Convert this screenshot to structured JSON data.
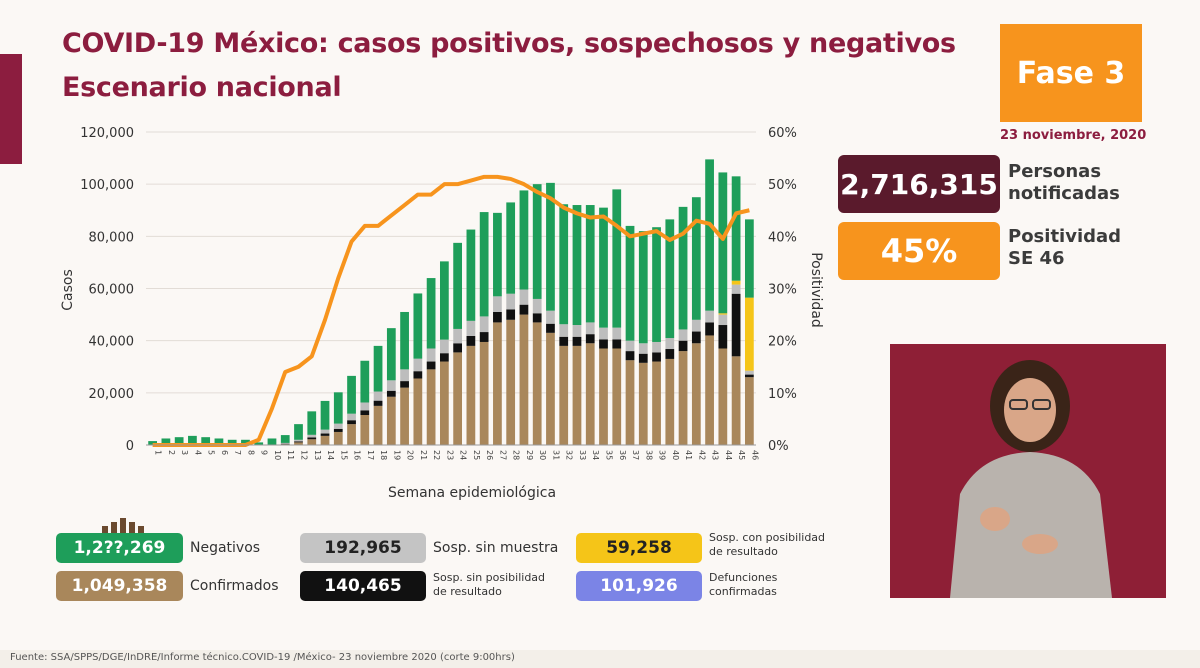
{
  "header": {
    "title": "COVID-19 México: casos positivos, sospechosos y negativos",
    "subtitle": "Escenario nacional",
    "phase": "Fase 3",
    "date": "23 noviembre, 2020"
  },
  "kpis": {
    "notified_value": "2,716,315",
    "notified_label_1": "Personas",
    "notified_label_2": "notificadas",
    "positivity_value": "45%",
    "positivity_label_1": "Positividad",
    "positivity_label_2": "SE 46"
  },
  "legend": {
    "negativos_value": "1,2??,269",
    "negativos_label": "Negativos",
    "confirmados_value": "1,049,358",
    "confirmados_label": "Confirmados",
    "sin_muestra_value": "192,965",
    "sin_muestra_label": "Sosp. sin muestra",
    "sin_posibilidad_value": "140,465",
    "sin_posibilidad_label_1": "Sosp. sin posibilidad",
    "sin_posibilidad_label_2": "de resultado",
    "con_posibilidad_value": "59,258",
    "con_posibilidad_label_1": "Sosp. con posibilidad",
    "con_posibilidad_label_2": "de resultado",
    "defunciones_value": "101,926",
    "defunciones_label_1": "Defunciones",
    "defunciones_label_2": "confirmadas"
  },
  "footer": {
    "source": "Fuente: SSA/SPPS/DGE/InDRE/Informe técnico.COVID-19 /México- 23 noviembre 2020 (corte 9:00hrs)"
  },
  "colors": {
    "confirmados": "#a9875b",
    "sin_posibilidad": "#111111",
    "sin_muestra": "#bdbdbd",
    "negativos": "#1e9e5a",
    "con_posibilidad": "#f5c518",
    "positividad": "#f7941d",
    "brand": "#8c1d3f"
  },
  "chart_data": {
    "type": "bar",
    "stacked": true,
    "xlabel": "Semana epidemiológica",
    "ylabel": "Casos",
    "y2label": "Positividad",
    "ylim": [
      0,
      120000
    ],
    "y2lim": [
      0,
      60
    ],
    "yticks": [
      "0",
      "20,000",
      "40,000",
      "60,000",
      "80,000",
      "100,000",
      "120,000"
    ],
    "y2ticks": [
      "0%",
      "10%",
      "20%",
      "30%",
      "40%",
      "50%",
      "60%"
    ],
    "grid": true,
    "categories": [
      "1",
      "2",
      "3",
      "4",
      "5",
      "6",
      "7",
      "8",
      "9",
      "10",
      "11",
      "12",
      "13",
      "14",
      "15",
      "16",
      "17",
      "18",
      "19",
      "20",
      "21",
      "22",
      "23",
      "24",
      "25",
      "26",
      "27",
      "28",
      "29",
      "30",
      "31",
      "32",
      "33",
      "34",
      "35",
      "36",
      "37",
      "38",
      "39",
      "40",
      "41",
      "42",
      "43",
      "44",
      "45",
      "46"
    ],
    "series": [
      {
        "name": "Confirmados",
        "values": [
          0,
          0,
          0,
          0,
          0,
          0,
          0,
          0,
          0,
          0,
          300,
          1000,
          2200,
          3500,
          5000,
          8000,
          11500,
          15000,
          18500,
          22000,
          25500,
          29000,
          32000,
          35500,
          38000,
          39500,
          47000,
          48000,
          50000,
          47000,
          43000,
          38000,
          38000,
          39000,
          37000,
          37000,
          32500,
          31500,
          32000,
          33000,
          36000,
          39000,
          42000,
          37000,
          34000,
          26000
        ]
      },
      {
        "name": "Sosp. sin posibilidad de resultado",
        "values": [
          0,
          0,
          0,
          0,
          0,
          0,
          0,
          0,
          0,
          0,
          200,
          400,
          700,
          900,
          1200,
          1500,
          1800,
          2000,
          2300,
          2500,
          2800,
          3000,
          3200,
          3500,
          3800,
          3800,
          4000,
          4000,
          3800,
          3500,
          3500,
          3500,
          3500,
          3500,
          3500,
          3500,
          3500,
          3500,
          3500,
          3800,
          4000,
          4500,
          5000,
          9000,
          24000,
          1000
        ]
      },
      {
        "name": "Sosp. sin muestra",
        "values": [
          0,
          0,
          0,
          0,
          0,
          0,
          0,
          0,
          0,
          0,
          300,
          600,
          1000,
          1500,
          2000,
          2500,
          3000,
          3500,
          4000,
          4500,
          4800,
          5000,
          5200,
          5500,
          5800,
          6000,
          6000,
          6000,
          5800,
          5500,
          5000,
          4800,
          4500,
          4500,
          4500,
          4500,
          4000,
          4000,
          4000,
          4200,
          4300,
          4500,
          4500,
          4000,
          3500,
          1500
        ]
      },
      {
        "name": "Sosp. con posibilidad de resultado",
        "values": [
          0,
          0,
          0,
          0,
          0,
          0,
          0,
          0,
          0,
          0,
          0,
          0,
          0,
          0,
          0,
          0,
          0,
          0,
          0,
          0,
          0,
          0,
          0,
          0,
          0,
          0,
          0,
          0,
          0,
          0,
          0,
          0,
          0,
          0,
          0,
          0,
          0,
          0,
          0,
          0,
          0,
          0,
          0,
          500,
          1500,
          28000
        ]
      },
      {
        "name": "Negativos",
        "values": [
          1500,
          2500,
          3000,
          3500,
          3000,
          2500,
          2000,
          2000,
          1000,
          2500,
          3000,
          6000,
          9000,
          11000,
          12000,
          14500,
          16000,
          17500,
          20000,
          22000,
          25000,
          27000,
          30000,
          33000,
          35000,
          40000,
          32000,
          35000,
          38000,
          44000,
          49000,
          46000,
          46000,
          45000,
          46000,
          53000,
          44000,
          43000,
          44000,
          45500,
          47000,
          47000,
          58000,
          54000,
          40000,
          30000
        ]
      }
    ],
    "line": {
      "name": "Positividad",
      "values": [
        0,
        0,
        0,
        0,
        0,
        0,
        0,
        0,
        1,
        7,
        14,
        15,
        17,
        24,
        32,
        39,
        42,
        42,
        44,
        46,
        48,
        48,
        50,
        50,
        50.7,
        51.4,
        51.4,
        51,
        50,
        48.5,
        47.3,
        45.5,
        44.4,
        43.6,
        43.8,
        42,
        40,
        40.5,
        41,
        39.3,
        40.5,
        43,
        42.4,
        39.5,
        44.4,
        45
      ]
    }
  }
}
